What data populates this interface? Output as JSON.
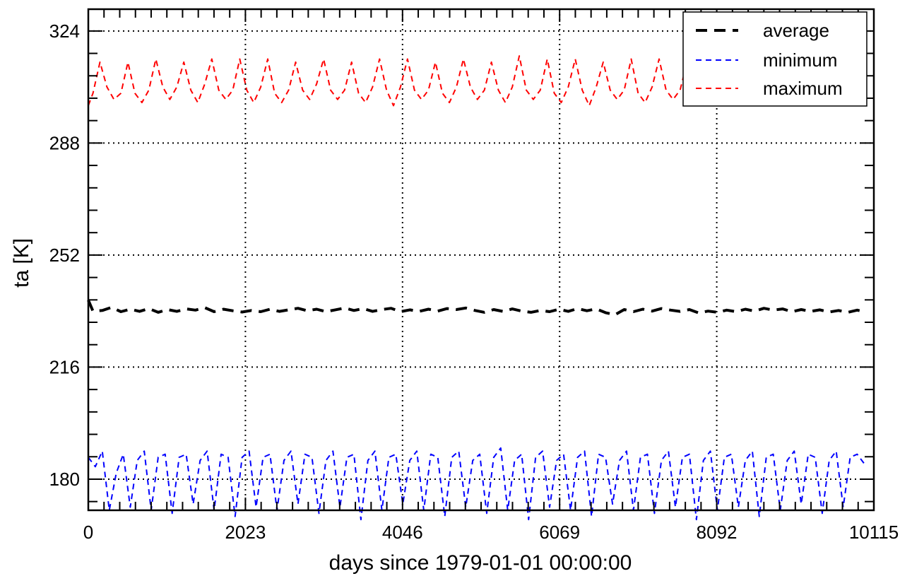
{
  "chart_data": {
    "type": "line",
    "title": "",
    "xlabel": "days since 1979-01-01 00:00:00",
    "ylabel": "ta [K]",
    "xlim": [
      0,
      10115
    ],
    "ylim": [
      170,
      331
    ],
    "x_ticks": [
      0,
      2023,
      4046,
      6069,
      8092,
      10115
    ],
    "y_ticks": [
      180,
      216,
      252,
      288,
      324
    ],
    "x_tick_labels": [
      "0",
      "2023",
      "4046",
      "6069",
      "8092",
      "10115"
    ],
    "y_tick_labels": [
      "180",
      "216",
      "252",
      "288",
      "324"
    ],
    "grid": true,
    "legend_position": "top-right",
    "series": [
      {
        "name": "average",
        "color": "#000000",
        "style": "long-dash",
        "x": [
          0,
          60,
          180,
          300,
          420,
          540,
          660,
          780,
          900,
          1020,
          1140,
          1260,
          1380,
          1500,
          1620,
          1740,
          1860,
          1980,
          2100,
          2220,
          2340,
          2460,
          2580,
          2700,
          2820,
          2940,
          3060,
          3180,
          3300,
          3420,
          3540,
          3660,
          3780,
          3900,
          4020,
          4140,
          4260,
          4380,
          4500,
          4620,
          4740,
          4860,
          4980,
          5100,
          5220,
          5340,
          5460,
          5580,
          5700,
          5820,
          5940,
          6060,
          6180,
          6300,
          6420,
          6540,
          6660,
          6780,
          6900,
          7020,
          7140,
          7260,
          7380,
          7500,
          7620,
          7740,
          7860,
          7980,
          8100,
          8220,
          8340,
          8460,
          8580,
          8700,
          8820,
          8940,
          9060,
          9180,
          9300,
          9420,
          9540,
          9660,
          9780,
          9900,
          9990
        ],
        "y": [
          237.5,
          234.0,
          234.2,
          235.2,
          233.8,
          234.6,
          233.9,
          234.8,
          233.6,
          234.5,
          233.9,
          234.7,
          234.3,
          235.1,
          233.8,
          234.6,
          234.1,
          233.7,
          234.2,
          233.8,
          234.6,
          233.9,
          234.4,
          234.9,
          234.1,
          234.6,
          233.8,
          234.4,
          235.0,
          234.2,
          234.8,
          233.9,
          234.5,
          234.9,
          233.8,
          234.4,
          233.9,
          234.6,
          234.0,
          234.8,
          234.5,
          235.0,
          234.2,
          233.6,
          234.5,
          233.9,
          234.7,
          234.0,
          233.6,
          234.2,
          233.8,
          234.6,
          233.9,
          234.8,
          234.1,
          234.7,
          233.5,
          232.8,
          234.5,
          233.8,
          234.6,
          234.0,
          234.8,
          234.3,
          233.9,
          234.5,
          233.4,
          234.0,
          233.6,
          234.3,
          233.8,
          234.6,
          234.0,
          234.9,
          234.3,
          234.7,
          233.8,
          234.5,
          233.9,
          234.4,
          233.7,
          234.2,
          233.6,
          234.3,
          233.8
        ]
      },
      {
        "name": "minimum",
        "color": "#0000ff",
        "style": "short-dash",
        "x": [
          0,
          90,
          180,
          270,
          360,
          450,
          540,
          630,
          720,
          810,
          900,
          990,
          1080,
          1170,
          1260,
          1350,
          1440,
          1530,
          1620,
          1710,
          1800,
          1890,
          1980,
          2070,
          2160,
          2250,
          2340,
          2430,
          2520,
          2610,
          2700,
          2790,
          2880,
          2970,
          3060,
          3150,
          3240,
          3330,
          3420,
          3510,
          3600,
          3690,
          3780,
          3870,
          3960,
          4050,
          4140,
          4230,
          4320,
          4410,
          4500,
          4590,
          4680,
          4770,
          4860,
          4950,
          5040,
          5130,
          5220,
          5310,
          5400,
          5490,
          5580,
          5670,
          5760,
          5850,
          5940,
          6030,
          6120,
          6210,
          6300,
          6390,
          6480,
          6570,
          6660,
          6750,
          6840,
          6930,
          7020,
          7110,
          7200,
          7290,
          7380,
          7470,
          7560,
          7650,
          7740,
          7830,
          7920,
          8010,
          8100,
          8190,
          8280,
          8370,
          8460,
          8550,
          8640,
          8730,
          8820,
          8910,
          9000,
          9090,
          9180,
          9270,
          9360,
          9450,
          9540,
          9630,
          9720,
          9810,
          9900,
          9990
        ],
        "y": [
          187,
          184,
          189,
          170,
          182,
          188,
          171,
          186,
          189,
          170,
          187,
          188,
          169,
          187,
          188,
          172,
          186,
          189,
          170,
          188,
          187,
          168,
          187,
          189,
          171,
          187,
          188,
          170,
          186,
          189,
          172,
          188,
          187,
          169,
          186,
          189,
          171,
          187,
          188,
          167,
          186,
          189,
          170,
          187,
          188,
          172,
          186,
          189,
          170,
          188,
          187,
          168,
          187,
          189,
          171,
          186,
          188,
          169,
          187,
          190,
          170,
          186,
          188,
          167,
          187,
          189,
          171,
          186,
          188,
          170,
          187,
          189,
          168,
          188,
          187,
          172,
          186,
          189,
          170,
          187,
          188,
          169,
          186,
          189,
          171,
          187,
          188,
          167,
          186,
          189,
          170,
          187,
          188,
          171,
          186,
          189,
          168,
          187,
          188,
          170,
          186,
          189,
          172,
          188,
          187,
          169,
          186,
          189,
          171,
          187,
          188,
          185
        ]
      },
      {
        "name": "maximum",
        "color": "#ff0000",
        "style": "short-dash",
        "x": [
          0,
          60,
          150,
          240,
          330,
          420,
          510,
          600,
          690,
          780,
          870,
          960,
          1050,
          1140,
          1230,
          1320,
          1410,
          1500,
          1590,
          1680,
          1770,
          1860,
          1950,
          2040,
          2130,
          2220,
          2310,
          2400,
          2490,
          2580,
          2670,
          2760,
          2850,
          2940,
          3030,
          3120,
          3210,
          3300,
          3390,
          3480,
          3570,
          3660,
          3750,
          3840,
          3930,
          4020,
          4110,
          4200,
          4290,
          4380,
          4470,
          4560,
          4650,
          4740,
          4830,
          4920,
          5010,
          5100,
          5190,
          5280,
          5370,
          5460,
          5550,
          5640,
          5730,
          5820,
          5910,
          6000,
          6090,
          6180,
          6270,
          6360,
          6450,
          6540,
          6630,
          6720,
          6810,
          6900,
          6990,
          7080,
          7170,
          7260,
          7350,
          7440,
          7530,
          7620,
          7710,
          7800,
          7890,
          7980,
          8070,
          8160,
          8250,
          8340,
          8430,
          8520,
          8610,
          8700,
          8790,
          8880,
          8970,
          9060,
          9150,
          9240,
          9330,
          9420,
          9510,
          9600,
          9690,
          9780,
          9870,
          9960
        ],
        "y": [
          300,
          304,
          314,
          306,
          302,
          304,
          314,
          304,
          301,
          305,
          315,
          306,
          302,
          306,
          314,
          305,
          301,
          307,
          315,
          305,
          302,
          305,
          315,
          305,
          301,
          306,
          315,
          304,
          301,
          305,
          314,
          305,
          302,
          307,
          315,
          305,
          302,
          305,
          314,
          304,
          301,
          306,
          315,
          305,
          300,
          306,
          315,
          305,
          302,
          305,
          314,
          304,
          301,
          306,
          315,
          306,
          302,
          305,
          314,
          305,
          301,
          306,
          316,
          305,
          302,
          305,
          315,
          304,
          301,
          306,
          315,
          305,
          300,
          306,
          314,
          305,
          302,
          305,
          315,
          304,
          301,
          306,
          315,
          305,
          302,
          305,
          314,
          304,
          301,
          306,
          315,
          305,
          302,
          305,
          314,
          305,
          301,
          306,
          315,
          305,
          302,
          305,
          314,
          304,
          301,
          306,
          315,
          305,
          302,
          305,
          314,
          305
        ]
      }
    ]
  }
}
